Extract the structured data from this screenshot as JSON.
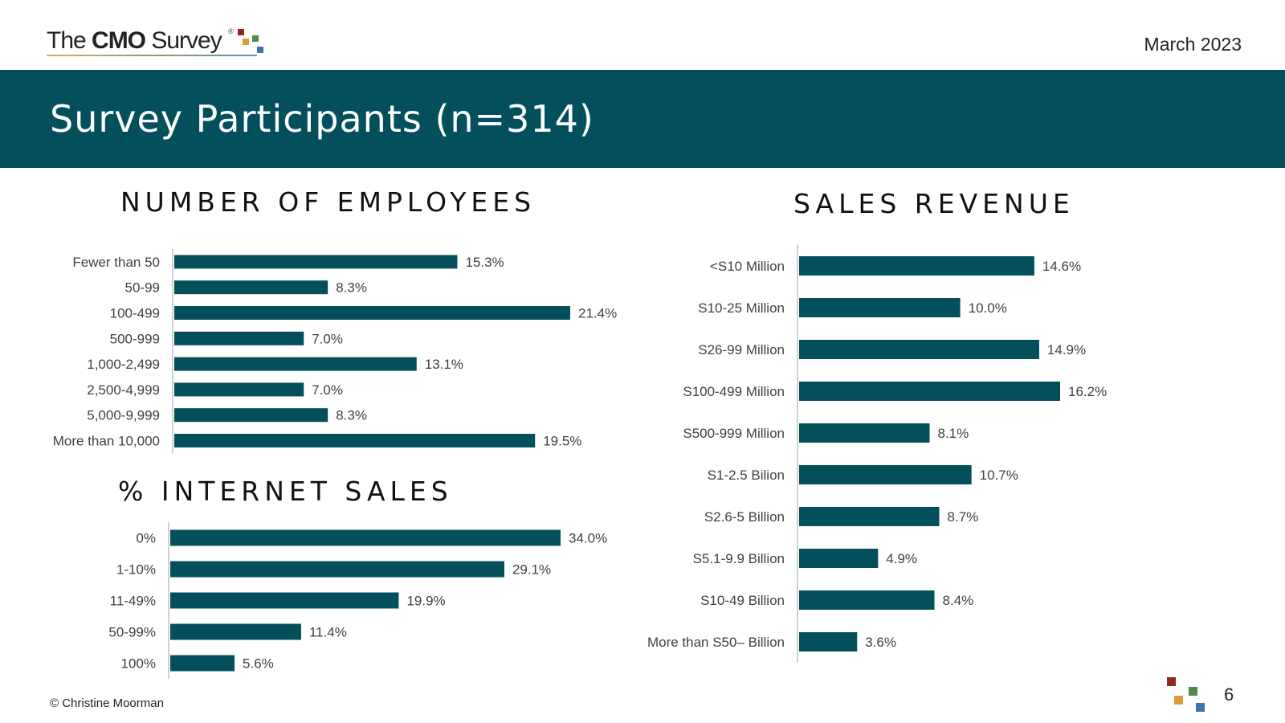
{
  "header": {
    "logo_text_prefix": "The ",
    "logo_text_bold": "CMO",
    "logo_text_suffix": " Survey",
    "logo_mark": "®",
    "date": "March 2023"
  },
  "banner": {
    "title": "Survey Participants (n=314)"
  },
  "footer": {
    "copyright": "© Christine Moorman",
    "page_number": "6"
  },
  "colors": {
    "banner": "#03505c",
    "bar": "#03505c",
    "logo_red": "#8b2a1d",
    "logo_orange": "#e0993a",
    "logo_green": "#4e8c4a",
    "logo_blue": "#3d73b0"
  },
  "chart_data": [
    {
      "type": "bar",
      "orientation": "horizontal",
      "title": "NUMBER OF EMPLOYEES",
      "categories": [
        "Fewer than 50",
        "50-99",
        "100-499",
        "500-999",
        "1,000-2,499",
        "2,500-4,999",
        "5,000-9,999",
        "More than 10,000"
      ],
      "values": [
        15.3,
        8.3,
        21.4,
        7.0,
        13.1,
        7.0,
        8.3,
        19.5
      ],
      "labels": [
        "15.3%",
        "8.3%",
        "21.4%",
        "7.0%",
        "13.1%",
        "7.0%",
        "8.3%",
        "19.5%"
      ],
      "xlim": [
        0,
        21.4
      ]
    },
    {
      "type": "bar",
      "orientation": "horizontal",
      "title": "% INTERNET SALES",
      "categories": [
        "0%",
        "1-10%",
        "11-49%",
        "50-99%",
        "100%"
      ],
      "values": [
        34.0,
        29.1,
        19.9,
        11.4,
        5.6
      ],
      "labels": [
        "34.0%",
        "29.1%",
        "19.9%",
        "11.4%",
        "5.6%"
      ],
      "xlim": [
        0,
        34.0
      ]
    },
    {
      "type": "bar",
      "orientation": "horizontal",
      "title": "SALES REVENUE",
      "categories": [
        "<S10 Million",
        "S10-25 Million",
        "S26-99 Million",
        "S100-499 Million",
        "S500-999 Million",
        "S1-2.5 Bilion",
        "S2.6-5 Billion",
        "S5.1-9.9 Billion",
        "S10-49 Billion",
        "More than S50– Billion"
      ],
      "values": [
        14.6,
        10.0,
        14.9,
        16.2,
        8.1,
        10.7,
        8.7,
        4.9,
        8.4,
        3.6
      ],
      "labels": [
        "14.6%",
        "10.0%",
        "14.9%",
        "16.2%",
        "8.1%",
        "10.7%",
        "8.7%",
        "4.9%",
        "8.4%",
        "3.6%"
      ],
      "xlim": [
        0,
        16.2
      ]
    }
  ]
}
